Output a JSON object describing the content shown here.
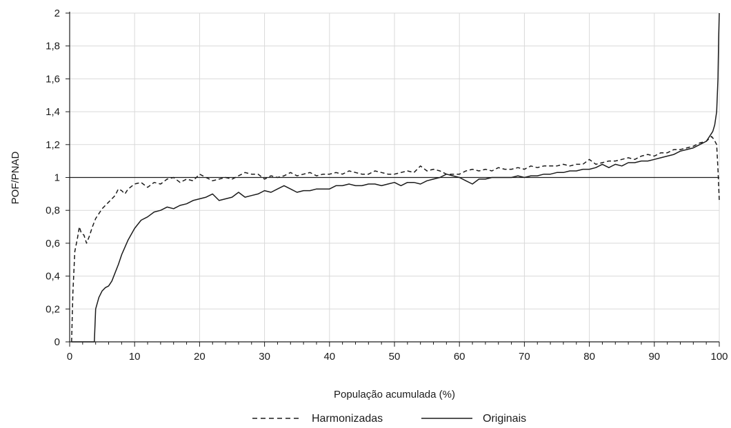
{
  "chart_data": {
    "type": "line",
    "xlabel": "População acumulada (%)",
    "ylabel": "POF/PNAD",
    "xlim": [
      0,
      100
    ],
    "ylim": [
      0,
      2
    ],
    "x_ticks": [
      0,
      10,
      20,
      30,
      40,
      50,
      60,
      70,
      80,
      90,
      100
    ],
    "x_tick_labels": [
      "0",
      "10",
      "20",
      "30",
      "40",
      "50",
      "60",
      "70",
      "80",
      "90",
      "100"
    ],
    "y_ticks": [
      0,
      0.2,
      0.4,
      0.6,
      0.8,
      1,
      1.2,
      1.4,
      1.6,
      1.8,
      2
    ],
    "y_tick_labels": [
      "0",
      "0,2",
      "0,4",
      "0,6",
      "0,8",
      "1",
      "1,2",
      "1,4",
      "1,6",
      "1,8",
      "2"
    ],
    "grid": true,
    "reference_line": {
      "y": 1
    },
    "legend_position": "bottom",
    "series": [
      {
        "name": "Harmonizadas",
        "style": "dashed",
        "color": "#1a1a1a",
        "points": [
          [
            0.3,
            0
          ],
          [
            0.5,
            0.3
          ],
          [
            0.8,
            0.55
          ],
          [
            1.2,
            0.63
          ],
          [
            1.5,
            0.7
          ],
          [
            1.8,
            0.66
          ],
          [
            2.2,
            0.65
          ],
          [
            2.6,
            0.6
          ],
          [
            3,
            0.64
          ],
          [
            3.5,
            0.7
          ],
          [
            4,
            0.75
          ],
          [
            5,
            0.81
          ],
          [
            6,
            0.85
          ],
          [
            7,
            0.89
          ],
          [
            7.5,
            0.93
          ],
          [
            8,
            0.92
          ],
          [
            8.5,
            0.9
          ],
          [
            9,
            0.93
          ],
          [
            10,
            0.96
          ],
          [
            11,
            0.97
          ],
          [
            12,
            0.94
          ],
          [
            13,
            0.97
          ],
          [
            14,
            0.96
          ],
          [
            15,
            0.99
          ],
          [
            16,
            1
          ],
          [
            17,
            0.97
          ],
          [
            18,
            0.99
          ],
          [
            19,
            0.98
          ],
          [
            20,
            1.02
          ],
          [
            21,
            1
          ],
          [
            22,
            0.98
          ],
          [
            23,
            0.99
          ],
          [
            24,
            1
          ],
          [
            25,
            0.99
          ],
          [
            26,
            1.01
          ],
          [
            27,
            1.03
          ],
          [
            28,
            1.02
          ],
          [
            29,
            1.02
          ],
          [
            30,
            0.99
          ],
          [
            31,
            1.01
          ],
          [
            32,
            1
          ],
          [
            33,
            1.01
          ],
          [
            34,
            1.03
          ],
          [
            35,
            1.01
          ],
          [
            36,
            1.02
          ],
          [
            37,
            1.03
          ],
          [
            38,
            1.01
          ],
          [
            39,
            1.02
          ],
          [
            40,
            1.02
          ],
          [
            41,
            1.03
          ],
          [
            42,
            1.02
          ],
          [
            43,
            1.04
          ],
          [
            44,
            1.03
          ],
          [
            45,
            1.02
          ],
          [
            46,
            1.02
          ],
          [
            47,
            1.04
          ],
          [
            48,
            1.03
          ],
          [
            49,
            1.02
          ],
          [
            50,
            1.02
          ],
          [
            51,
            1.03
          ],
          [
            52,
            1.04
          ],
          [
            53,
            1.03
          ],
          [
            54,
            1.07
          ],
          [
            55,
            1.04
          ],
          [
            56,
            1.05
          ],
          [
            57,
            1.04
          ],
          [
            58,
            1.02
          ],
          [
            59,
            1.02
          ],
          [
            60,
            1.02
          ],
          [
            61,
            1.04
          ],
          [
            62,
            1.05
          ],
          [
            63,
            1.04
          ],
          [
            64,
            1.05
          ],
          [
            65,
            1.04
          ],
          [
            66,
            1.06
          ],
          [
            67,
            1.05
          ],
          [
            68,
            1.05
          ],
          [
            69,
            1.06
          ],
          [
            70,
            1.05
          ],
          [
            71,
            1.07
          ],
          [
            72,
            1.06
          ],
          [
            73,
            1.07
          ],
          [
            74,
            1.07
          ],
          [
            75,
            1.07
          ],
          [
            76,
            1.08
          ],
          [
            77,
            1.07
          ],
          [
            78,
            1.08
          ],
          [
            79,
            1.08
          ],
          [
            80,
            1.11
          ],
          [
            81,
            1.08
          ],
          [
            82,
            1.09
          ],
          [
            83,
            1.1
          ],
          [
            84,
            1.1
          ],
          [
            85,
            1.11
          ],
          [
            86,
            1.12
          ],
          [
            87,
            1.11
          ],
          [
            88,
            1.13
          ],
          [
            89,
            1.14
          ],
          [
            90,
            1.13
          ],
          [
            91,
            1.15
          ],
          [
            92,
            1.15
          ],
          [
            93,
            1.17
          ],
          [
            94,
            1.17
          ],
          [
            95,
            1.18
          ],
          [
            96,
            1.19
          ],
          [
            97,
            1.21
          ],
          [
            98,
            1.22
          ],
          [
            98.8,
            1.25
          ],
          [
            99.2,
            1.23
          ],
          [
            99.6,
            1.2
          ],
          [
            99.8,
            1.05
          ],
          [
            100,
            0.86
          ]
        ]
      },
      {
        "name": "Originais",
        "style": "solid",
        "color": "#1a1a1a",
        "points": [
          [
            0.3,
            0
          ],
          [
            3.8,
            0
          ],
          [
            4,
            0.2
          ],
          [
            4.5,
            0.27
          ],
          [
            5,
            0.31
          ],
          [
            5.5,
            0.33
          ],
          [
            6,
            0.34
          ],
          [
            6.5,
            0.37
          ],
          [
            7,
            0.42
          ],
          [
            7.5,
            0.47
          ],
          [
            8,
            0.53
          ],
          [
            9,
            0.62
          ],
          [
            10,
            0.69
          ],
          [
            11,
            0.74
          ],
          [
            12,
            0.76
          ],
          [
            13,
            0.79
          ],
          [
            14,
            0.8
          ],
          [
            15,
            0.82
          ],
          [
            16,
            0.81
          ],
          [
            17,
            0.83
          ],
          [
            18,
            0.84
          ],
          [
            19,
            0.86
          ],
          [
            20,
            0.87
          ],
          [
            21,
            0.88
          ],
          [
            22,
            0.9
          ],
          [
            23,
            0.86
          ],
          [
            24,
            0.87
          ],
          [
            25,
            0.88
          ],
          [
            26,
            0.91
          ],
          [
            27,
            0.88
          ],
          [
            28,
            0.89
          ],
          [
            29,
            0.9
          ],
          [
            30,
            0.92
          ],
          [
            31,
            0.91
          ],
          [
            32,
            0.93
          ],
          [
            33,
            0.95
          ],
          [
            34,
            0.93
          ],
          [
            35,
            0.91
          ],
          [
            36,
            0.92
          ],
          [
            37,
            0.92
          ],
          [
            38,
            0.93
          ],
          [
            39,
            0.93
          ],
          [
            40,
            0.93
          ],
          [
            41,
            0.95
          ],
          [
            42,
            0.95
          ],
          [
            43,
            0.96
          ],
          [
            44,
            0.95
          ],
          [
            45,
            0.95
          ],
          [
            46,
            0.96
          ],
          [
            47,
            0.96
          ],
          [
            48,
            0.95
          ],
          [
            49,
            0.96
          ],
          [
            50,
            0.97
          ],
          [
            51,
            0.95
          ],
          [
            52,
            0.97
          ],
          [
            53,
            0.97
          ],
          [
            54,
            0.96
          ],
          [
            55,
            0.98
          ],
          [
            56,
            0.99
          ],
          [
            57,
            1
          ],
          [
            58,
            1.02
          ],
          [
            59,
            1.01
          ],
          [
            60,
            1
          ],
          [
            61,
            0.98
          ],
          [
            62,
            0.96
          ],
          [
            63,
            0.99
          ],
          [
            64,
            0.99
          ],
          [
            65,
            1
          ],
          [
            66,
            1
          ],
          [
            67,
            1
          ],
          [
            68,
            1
          ],
          [
            69,
            1.01
          ],
          [
            70,
            1
          ],
          [
            71,
            1.01
          ],
          [
            72,
            1.01
          ],
          [
            73,
            1.02
          ],
          [
            74,
            1.02
          ],
          [
            75,
            1.03
          ],
          [
            76,
            1.03
          ],
          [
            77,
            1.04
          ],
          [
            78,
            1.04
          ],
          [
            79,
            1.05
          ],
          [
            80,
            1.05
          ],
          [
            81,
            1.06
          ],
          [
            82,
            1.08
          ],
          [
            83,
            1.06
          ],
          [
            84,
            1.08
          ],
          [
            85,
            1.07
          ],
          [
            86,
            1.09
          ],
          [
            87,
            1.09
          ],
          [
            88,
            1.1
          ],
          [
            89,
            1.1
          ],
          [
            90,
            1.11
          ],
          [
            91,
            1.12
          ],
          [
            92,
            1.13
          ],
          [
            93,
            1.14
          ],
          [
            94,
            1.16
          ],
          [
            95,
            1.17
          ],
          [
            96,
            1.18
          ],
          [
            97,
            1.2
          ],
          [
            98,
            1.22
          ],
          [
            98.5,
            1.25
          ],
          [
            99,
            1.28
          ],
          [
            99.3,
            1.32
          ],
          [
            99.6,
            1.4
          ],
          [
            99.8,
            1.6
          ],
          [
            99.9,
            1.85
          ],
          [
            100,
            2
          ]
        ]
      }
    ]
  }
}
